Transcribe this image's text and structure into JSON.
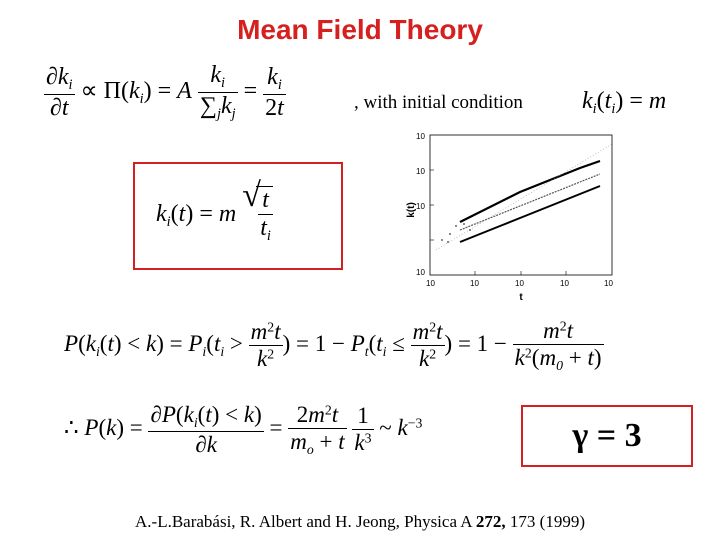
{
  "title": "Mean Field Theory",
  "initial_condition_text": ", with initial condition",
  "gamma_result": "γ = 3",
  "citation": {
    "authors": "A.-L.Barabási, R. Albert and H. Jeong, Physica A",
    "volume": "272,",
    "pages": "173 (1999)"
  },
  "plot": {
    "ylabel": "k(t)",
    "xlabel": "t",
    "x_ticks": [
      "10",
      "10",
      "10",
      "10",
      "10"
    ],
    "y_ticks": [
      "10",
      "10",
      "10",
      "10"
    ]
  },
  "colors": {
    "title": "#d62020",
    "box_border": "#d62020"
  }
}
